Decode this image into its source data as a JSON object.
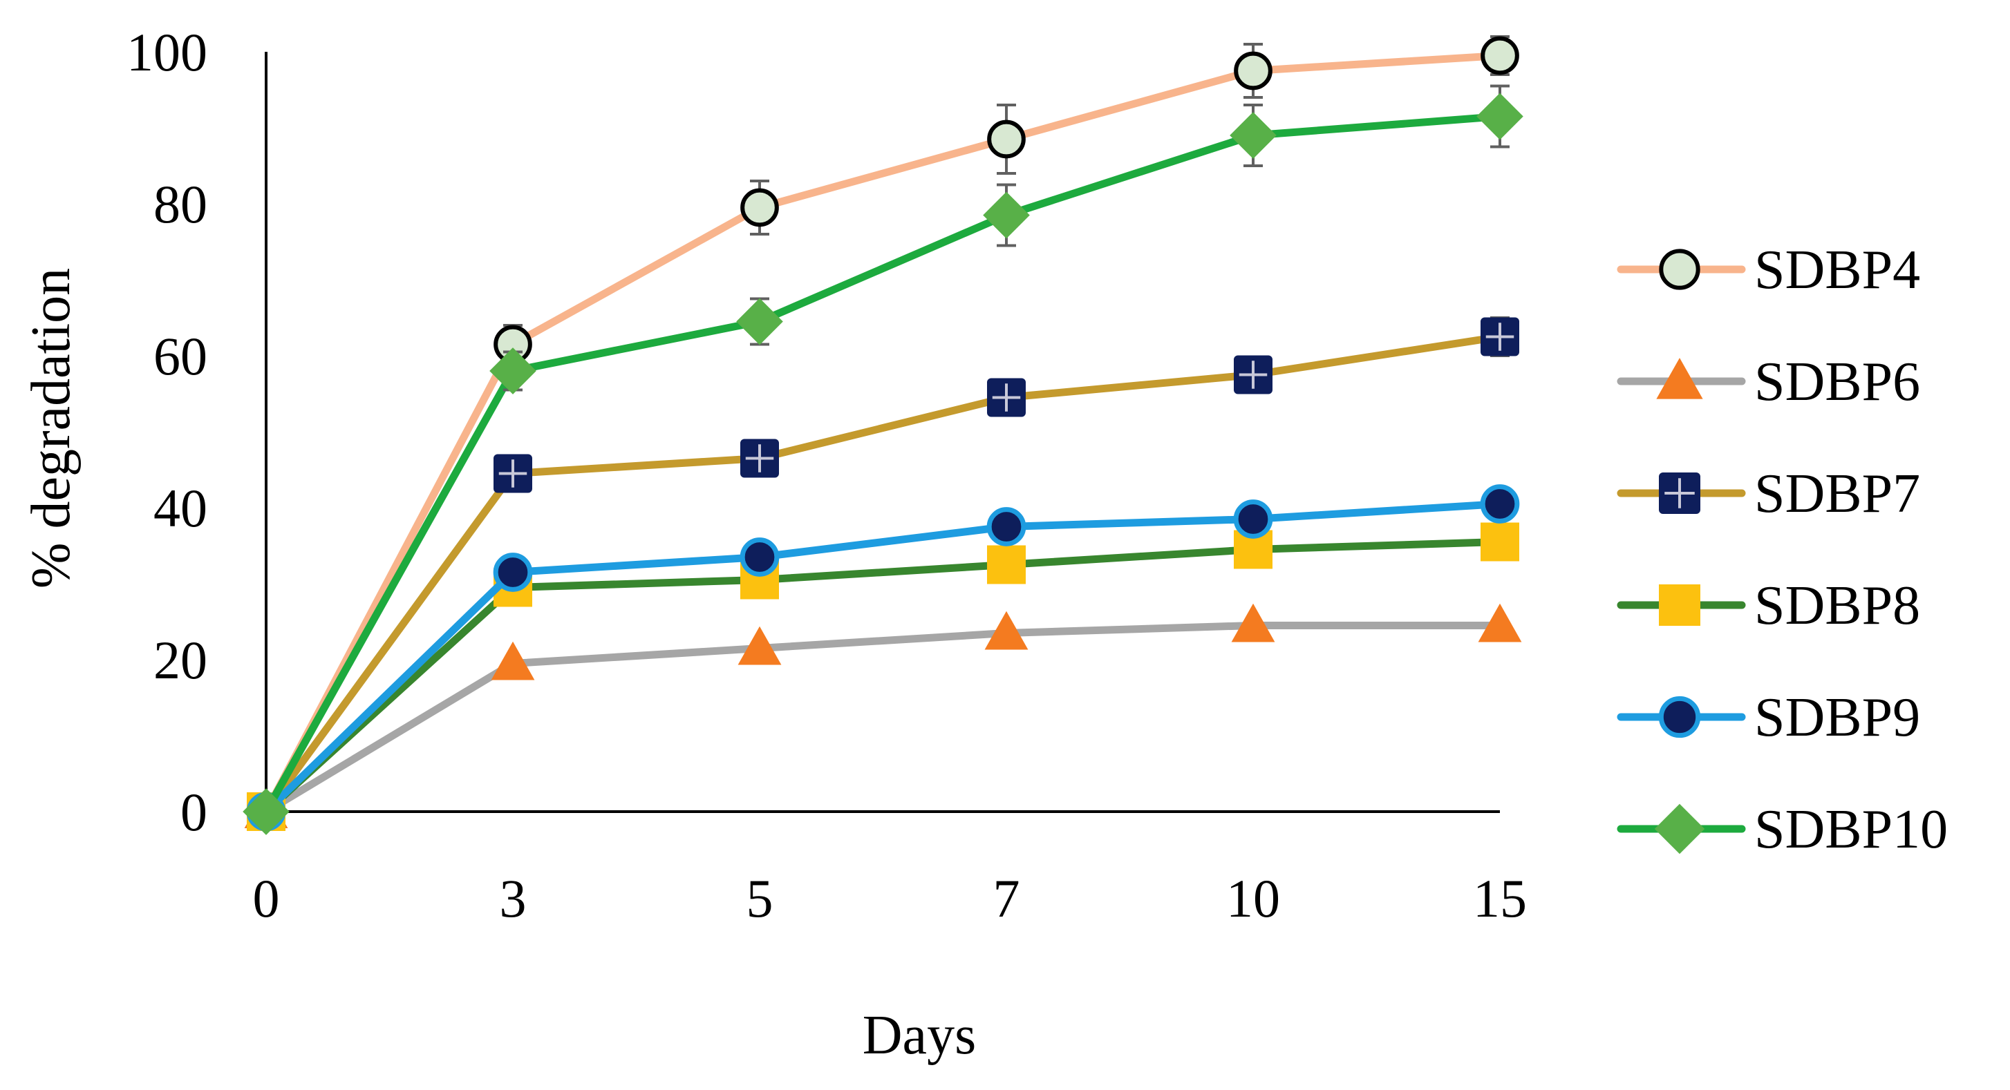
{
  "chart_data": {
    "type": "line",
    "title": "",
    "xlabel": "Days",
    "ylabel": "% degradation",
    "categories": [
      "0",
      "3",
      "5",
      "7",
      "10",
      "15"
    ],
    "ylim": [
      0,
      100
    ],
    "yticks": [
      "0",
      "20",
      "40",
      "60",
      "80",
      "100"
    ],
    "grid": false,
    "legend_position": "right",
    "series": [
      {
        "name": "SDBP4",
        "color": "#F8B48C",
        "marker": "circle-open",
        "marker_fill": "#D8E8D2",
        "marker_stroke": "#000000",
        "values": [
          0,
          61.5,
          79.5,
          88.5,
          97.5,
          99.5
        ],
        "errors": [
          0,
          2.5,
          3.5,
          4.5,
          3.5,
          2.5
        ]
      },
      {
        "name": "SDBP6",
        "color": "#A6A6A6",
        "marker": "triangle",
        "marker_fill": "#F47B20",
        "marker_stroke": "#F47B20",
        "values": [
          0,
          19.5,
          21.5,
          23.5,
          24.5,
          24.5
        ],
        "errors": [
          0,
          0,
          0,
          0,
          0,
          0
        ]
      },
      {
        "name": "SDBP7",
        "color": "#C49A2D",
        "marker": "square-plus",
        "marker_fill": "#0E1E5B",
        "marker_stroke": "#0E1E5B",
        "values": [
          0,
          44.5,
          46.5,
          54.5,
          57.5,
          62.5
        ],
        "errors": [
          0,
          0,
          0,
          0,
          0,
          2.5
        ]
      },
      {
        "name": "SDBP8",
        "color": "#38862E",
        "marker": "square",
        "marker_fill": "#FCC10F",
        "marker_stroke": "#FCC10F",
        "values": [
          0,
          29.5,
          30.5,
          32.5,
          34.5,
          35.5
        ],
        "errors": [
          0,
          0,
          0,
          0,
          0,
          0
        ]
      },
      {
        "name": "SDBP9",
        "color": "#1E9CE0",
        "marker": "circle",
        "marker_fill": "#0E1E5B",
        "marker_stroke": "#1E9CE0",
        "values": [
          0,
          31.5,
          33.5,
          37.5,
          38.5,
          40.5
        ],
        "errors": [
          0,
          0,
          0,
          0,
          0,
          0
        ]
      },
      {
        "name": "SDBP10",
        "color": "#1DAA3E",
        "marker": "diamond",
        "marker_fill": "#58B048",
        "marker_stroke": "#58B048",
        "values": [
          0,
          58.0,
          64.5,
          78.5,
          89.0,
          91.5
        ],
        "errors": [
          0,
          2.5,
          3.0,
          4.0,
          4.0,
          4.0
        ]
      }
    ]
  }
}
